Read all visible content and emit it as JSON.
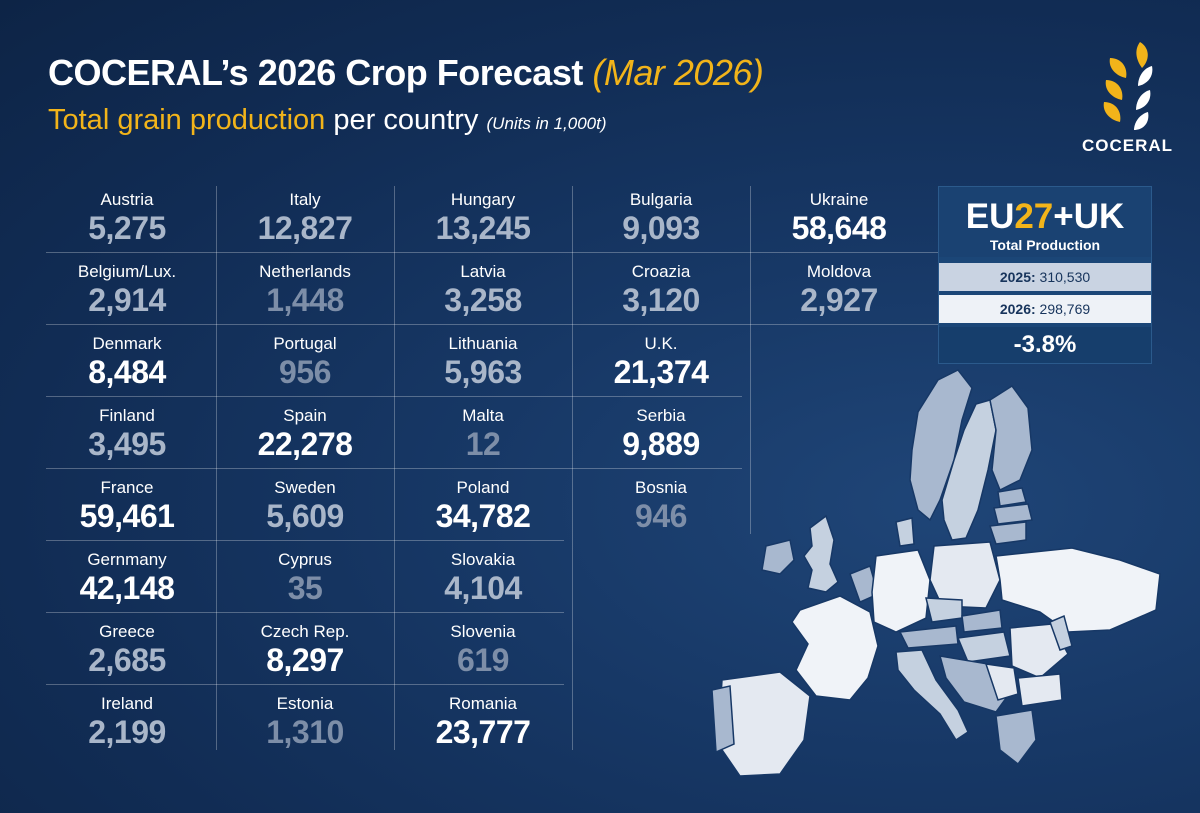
{
  "header": {
    "title": "COCERAL’s 2026 Crop Forecast",
    "title_date": "(Mar 2026)",
    "subtitle_highlight": "Total grain production",
    "subtitle_rest": "per country",
    "subtitle_units": "(Units in 1,000t)"
  },
  "logo": {
    "text": "COCERAL",
    "icon": "wheat-ear-icon"
  },
  "colors": {
    "accent": "#f2b41a",
    "background": "#143462",
    "value_high": "#ffffff",
    "value_mid": "#a9b6c9",
    "value_low": "#7d8ea8"
  },
  "columns": [
    [
      {
        "name": "Austria",
        "value": "5,275",
        "level": "mid"
      },
      {
        "name": "Belgium/Lux.",
        "value": "2,914",
        "level": "mid"
      },
      {
        "name": "Denmark",
        "value": "8,484",
        "level": "high"
      },
      {
        "name": "Finland",
        "value": "3,495",
        "level": "mid"
      },
      {
        "name": "France",
        "value": "59,461",
        "level": "high"
      },
      {
        "name": "Gernmany",
        "value": "42,148",
        "level": "high"
      },
      {
        "name": "Greece",
        "value": "2,685",
        "level": "mid"
      },
      {
        "name": "Ireland",
        "value": "2,199",
        "level": "mid"
      }
    ],
    [
      {
        "name": "Italy",
        "value": "12,827",
        "level": "mid"
      },
      {
        "name": "Netherlands",
        "value": "1,448",
        "level": "low"
      },
      {
        "name": "Portugal",
        "value": "956",
        "level": "low"
      },
      {
        "name": "Spain",
        "value": "22,278",
        "level": "high"
      },
      {
        "name": "Sweden",
        "value": "5,609",
        "level": "mid"
      },
      {
        "name": "Cyprus",
        "value": "35",
        "level": "low"
      },
      {
        "name": "Czech Rep.",
        "value": "8,297",
        "level": "high"
      },
      {
        "name": "Estonia",
        "value": "1,310",
        "level": "low"
      }
    ],
    [
      {
        "name": "Hungary",
        "value": "13,245",
        "level": "mid"
      },
      {
        "name": "Latvia",
        "value": "3,258",
        "level": "mid"
      },
      {
        "name": "Lithuania",
        "value": "5,963",
        "level": "mid"
      },
      {
        "name": "Malta",
        "value": "12",
        "level": "low"
      },
      {
        "name": "Poland",
        "value": "34,782",
        "level": "high"
      },
      {
        "name": "Slovakia",
        "value": "4,104",
        "level": "mid"
      },
      {
        "name": "Slovenia",
        "value": "619",
        "level": "low"
      },
      {
        "name": "Romania",
        "value": "23,777",
        "level": "high"
      }
    ],
    [
      {
        "name": "Bulgaria",
        "value": "9,093",
        "level": "mid"
      },
      {
        "name": "Croazia",
        "value": "3,120",
        "level": "mid"
      },
      {
        "name": "U.K.",
        "value": "21,374",
        "level": "high"
      },
      {
        "name": "Serbia",
        "value": "9,889",
        "level": "high"
      },
      {
        "name": "Bosnia",
        "value": "946",
        "level": "low"
      }
    ],
    [
      {
        "name": "Ukraine",
        "value": "58,648",
        "level": "high"
      },
      {
        "name": "Moldova",
        "value": "2,927",
        "level": "mid"
      }
    ]
  ],
  "summary": {
    "eu": "EU",
    "num": "27",
    "plus_uk": "+UK",
    "label": "Total Production",
    "row_2025_label": "2025:",
    "row_2025_value": "310,530",
    "row_2026_label": "2026:",
    "row_2026_value": "298,769",
    "change": "-3.8%"
  }
}
